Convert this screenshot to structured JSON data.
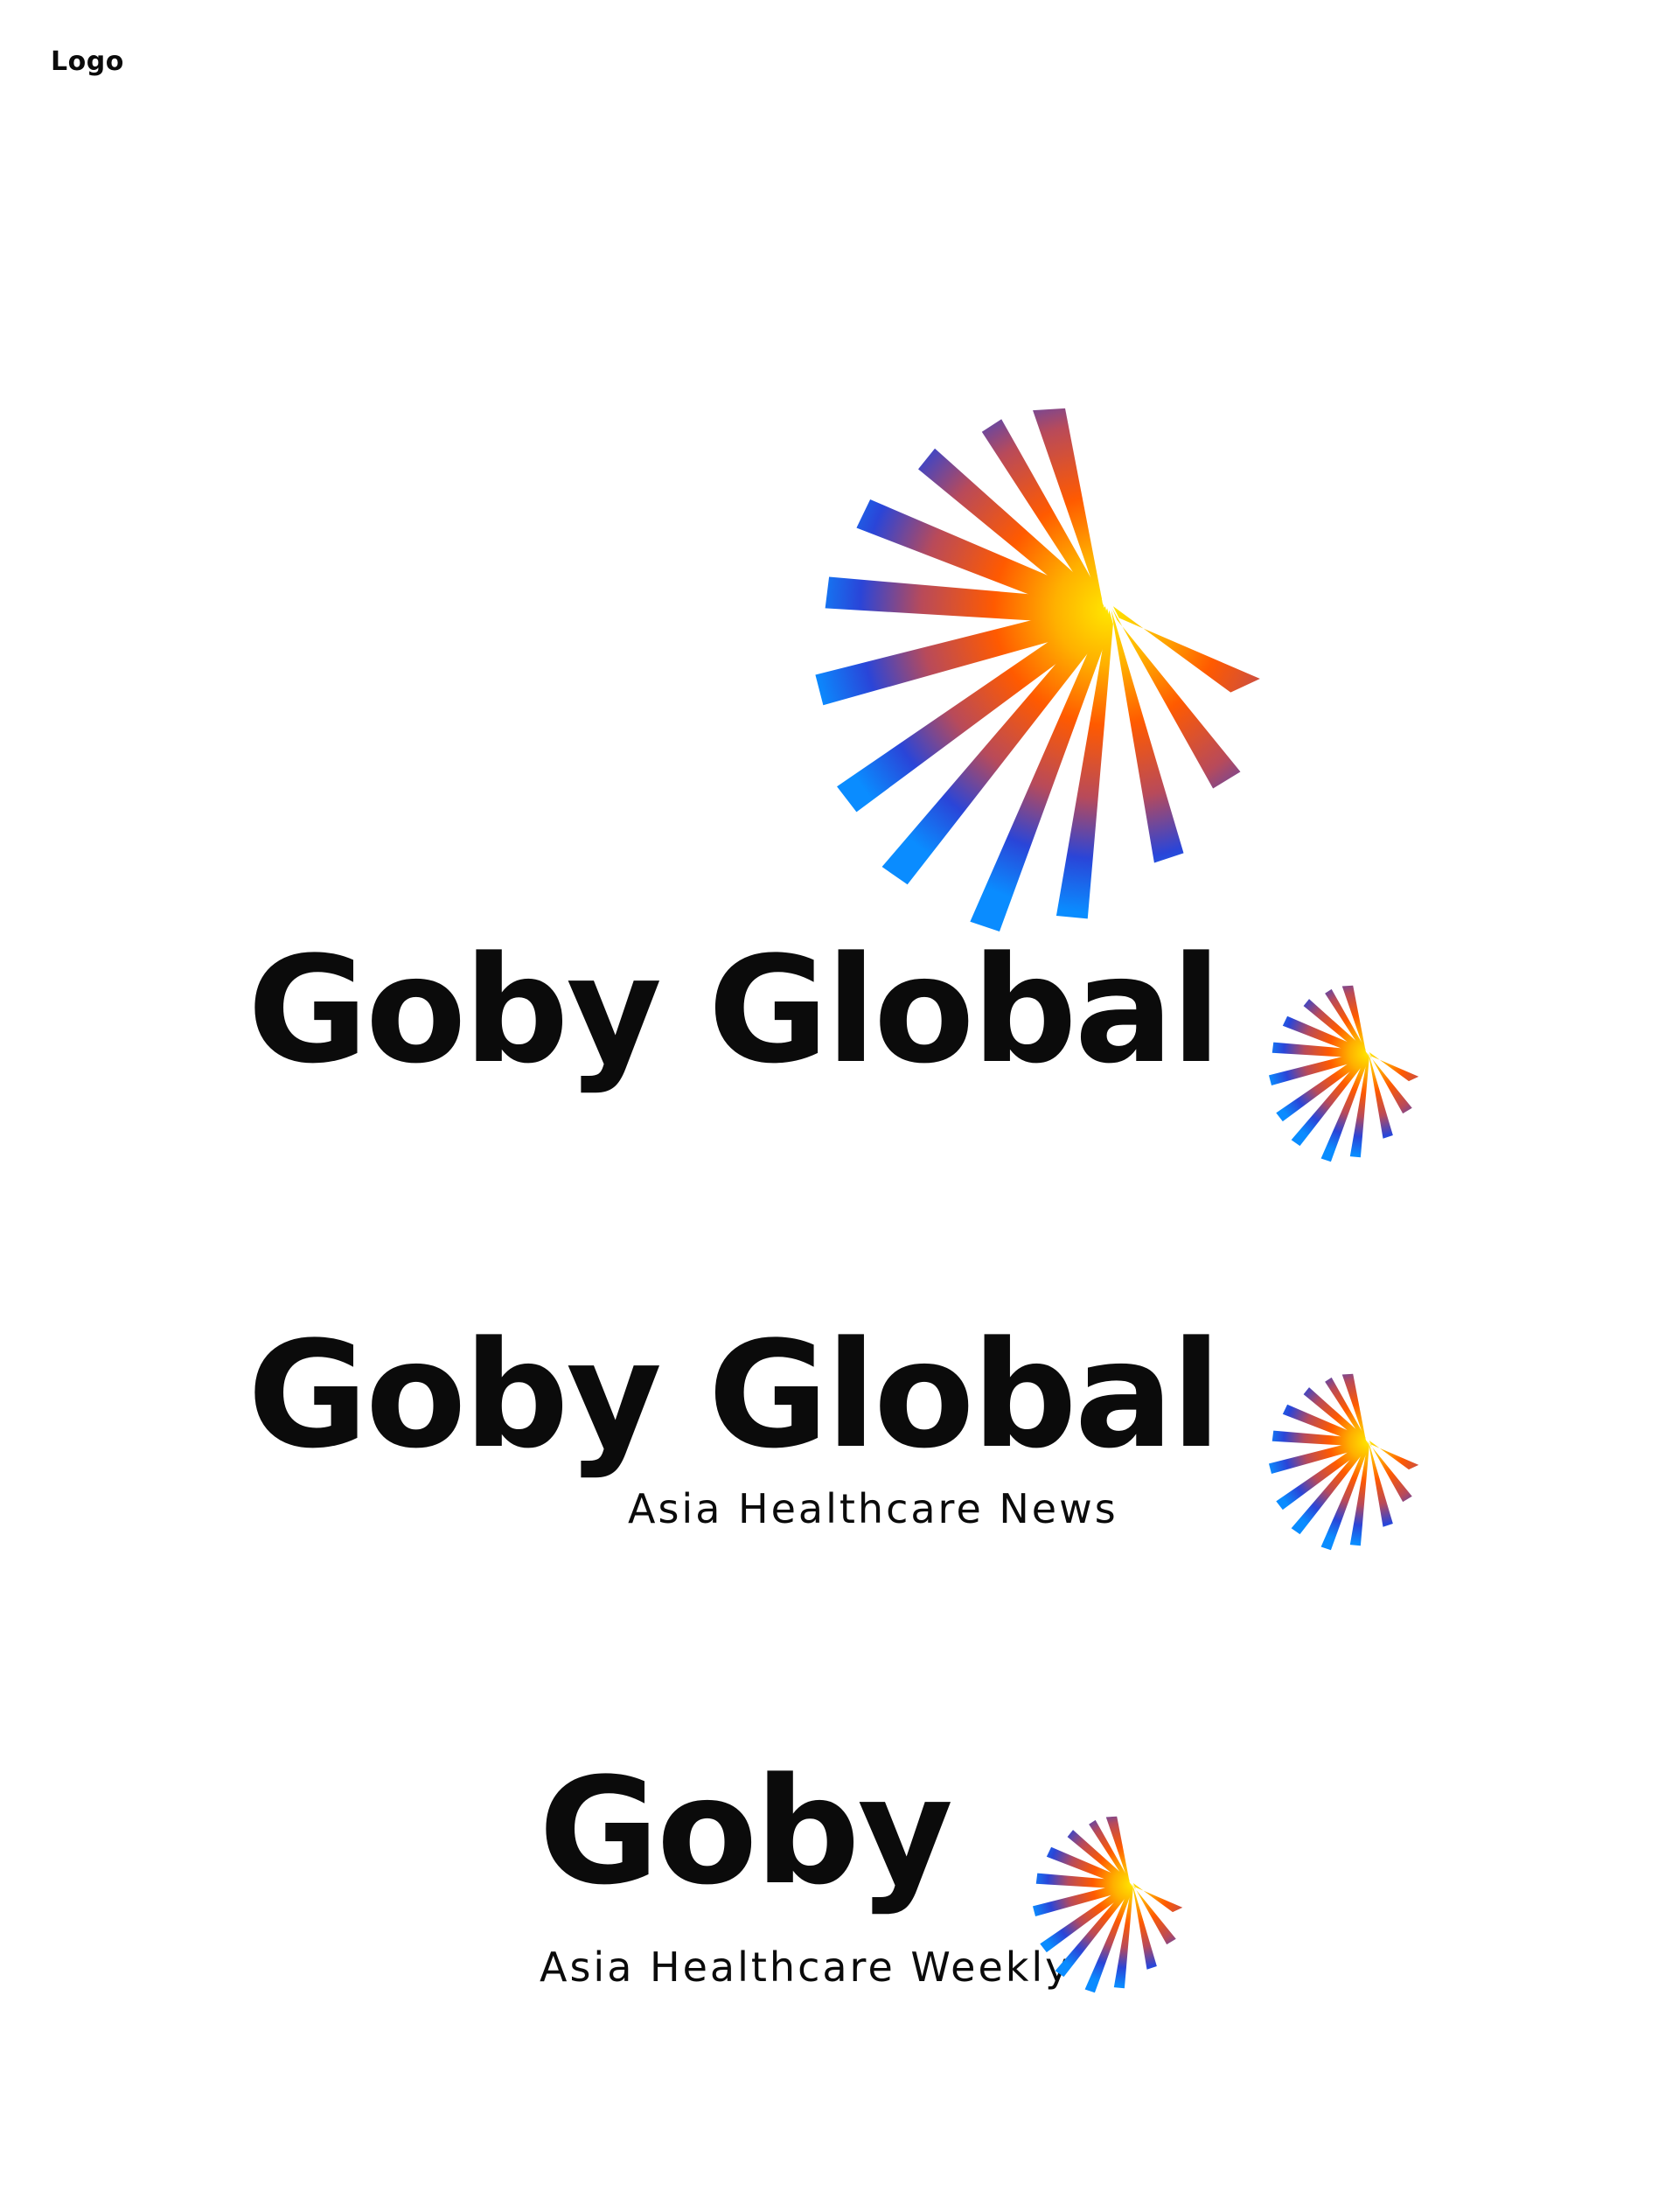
{
  "page": {
    "label": "Logo"
  },
  "brand": {
    "icon": "radiating-fan-icon",
    "gradient": {
      "core": "#ffd800",
      "mid": "#ff5a00",
      "deep": "#e53d1e",
      "transition": "#7b4a8f",
      "outer": "#1e40e0",
      "tip": "#0a8cff"
    },
    "text_color": "#0b0b0b"
  },
  "lockups": [
    {
      "wordmark": "Goby Global",
      "tagline": ""
    },
    {
      "wordmark": "Goby Global",
      "tagline": "Asia Healthcare News"
    },
    {
      "wordmark": "Goby",
      "tagline": "Asia Healthcare Weekly"
    }
  ]
}
